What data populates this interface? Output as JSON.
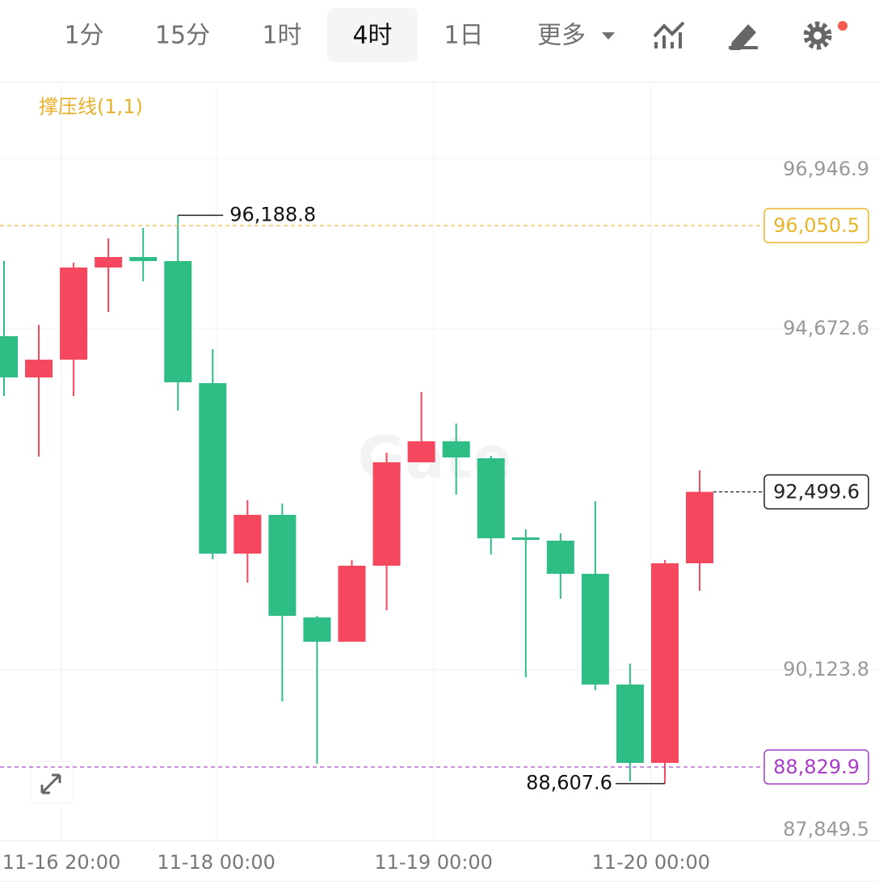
{
  "toolbar": {
    "tabs": [
      "1分",
      "15分",
      "1时",
      "4时",
      "1日",
      "更多"
    ],
    "selected": 3
  },
  "chart_data": {
    "type": "candlestick",
    "indicator": "撑压线(1,1)",
    "watermark": "Gate",
    "up_color": "#f5475e",
    "down_color": "#2ebd85",
    "ylim": [
      87849.5,
      97950
    ],
    "yticks": [
      {
        "value": 87849.5,
        "label": "87,849.5"
      },
      {
        "value": 90123.8,
        "label": "90,123.8"
      },
      {
        "value": 94672.6,
        "label": "94,672.6"
      },
      {
        "value": 96946.9,
        "label": "96,946.9"
      }
    ],
    "xticks": [
      {
        "value": 1.65,
        "label": "11-16 20:00"
      },
      {
        "value": 6.1,
        "label": "11-18 00:00"
      },
      {
        "value": 12.35,
        "label": "11-19 00:00"
      },
      {
        "value": 18.6,
        "label": "11-20 00:00"
      }
    ],
    "candles": [
      {
        "open": 94576,
        "high": 95578,
        "low": 93778,
        "close": 94026
      },
      {
        "open": 94026,
        "high": 94727,
        "low": 92970,
        "close": 94263
      },
      {
        "open": 94263,
        "high": 95557,
        "low": 93778,
        "close": 95492
      },
      {
        "open": 95492,
        "high": 95880,
        "low": 94899,
        "close": 95632
      },
      {
        "open": 95632,
        "high": 96020,
        "low": 95309,
        "close": 95578
      },
      {
        "open": 95578,
        "high": 96188.8,
        "low": 93584,
        "close": 93961
      },
      {
        "open": 93950,
        "high": 94403,
        "low": 91600,
        "close": 91676
      },
      {
        "open": 91676,
        "high": 92388,
        "low": 91288,
        "close": 92193
      },
      {
        "open": 92193,
        "high": 92344,
        "low": 89703,
        "close": 90846
      },
      {
        "open": 90825,
        "high": 90846,
        "low": 88873,
        "close": 90501
      },
      {
        "open": 90501,
        "high": 91590,
        "low": 90501,
        "close": 91515
      },
      {
        "open": 91515,
        "high": 93023,
        "low": 90921,
        "close": 92894
      },
      {
        "open": 92894,
        "high": 93832,
        "low": 92894,
        "close": 93174
      },
      {
        "open": 93174,
        "high": 93411,
        "low": 92463,
        "close": 92959
      },
      {
        "open": 92948,
        "high": 92980,
        "low": 91665,
        "close": 91881
      },
      {
        "open": 91892,
        "high": 92000,
        "low": 90027,
        "close": 91860
      },
      {
        "open": 91849,
        "high": 91946,
        "low": 91073,
        "close": 91407
      },
      {
        "open": 91407,
        "high": 92377,
        "low": 89855,
        "close": 89930
      },
      {
        "open": 89930,
        "high": 90210,
        "low": 88640,
        "close": 88885
      },
      {
        "open": 88885,
        "high": 91590,
        "low": 88607.6,
        "close": 91547
      },
      {
        "open": 91547,
        "high": 92787,
        "low": 91181,
        "close": 92499.6
      }
    ],
    "extremes": [
      {
        "value": 96188.8,
        "label": "96,188.8"
      },
      {
        "value": 88607.6,
        "label": "88,607.6"
      }
    ],
    "levels": [
      {
        "value": 96050.5,
        "label": "96,050.5",
        "color": "#e8b52a",
        "style": "resistance"
      },
      {
        "value": 92499.6,
        "label": "92,499.6",
        "color": "#222222",
        "style": "current"
      },
      {
        "value": 88829.9,
        "label": "88,829.9",
        "color": "#a63cc7",
        "style": "support"
      }
    ]
  }
}
